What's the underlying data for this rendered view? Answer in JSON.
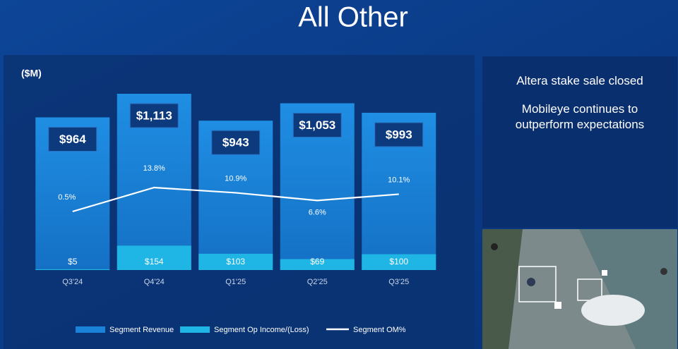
{
  "chart_data": {
    "type": "bar",
    "title": "All Other",
    "unit_label": "($M)",
    "categories": [
      "Q3'24",
      "Q4'24",
      "Q1'25",
      "Q2'25",
      "Q3'25"
    ],
    "series": [
      {
        "name": "Segment Revenue",
        "color": "#1a82d8",
        "values": [
          964,
          1113,
          943,
          1053,
          993
        ],
        "value_labels": [
          "$964",
          "$1,113",
          "$943",
          "$1,053",
          "$993"
        ]
      },
      {
        "name": "Segment Op Income/(Loss)",
        "color": "#1fb6e6",
        "values": [
          5,
          154,
          103,
          69,
          100
        ],
        "value_labels": [
          "$5",
          "$154",
          "$103",
          "$69",
          "$100"
        ]
      },
      {
        "name": "Segment OM%",
        "type": "line",
        "color": "#ffffff",
        "values": [
          0.5,
          13.8,
          10.9,
          6.6,
          10.1
        ],
        "value_labels": [
          "0.5%",
          "13.8%",
          "10.9%",
          "6.6%",
          "10.1%"
        ]
      }
    ]
  },
  "sidebar": {
    "bullets": [
      "Altera stake sale closed",
      "Mobileye continues to outperform expectations"
    ]
  }
}
